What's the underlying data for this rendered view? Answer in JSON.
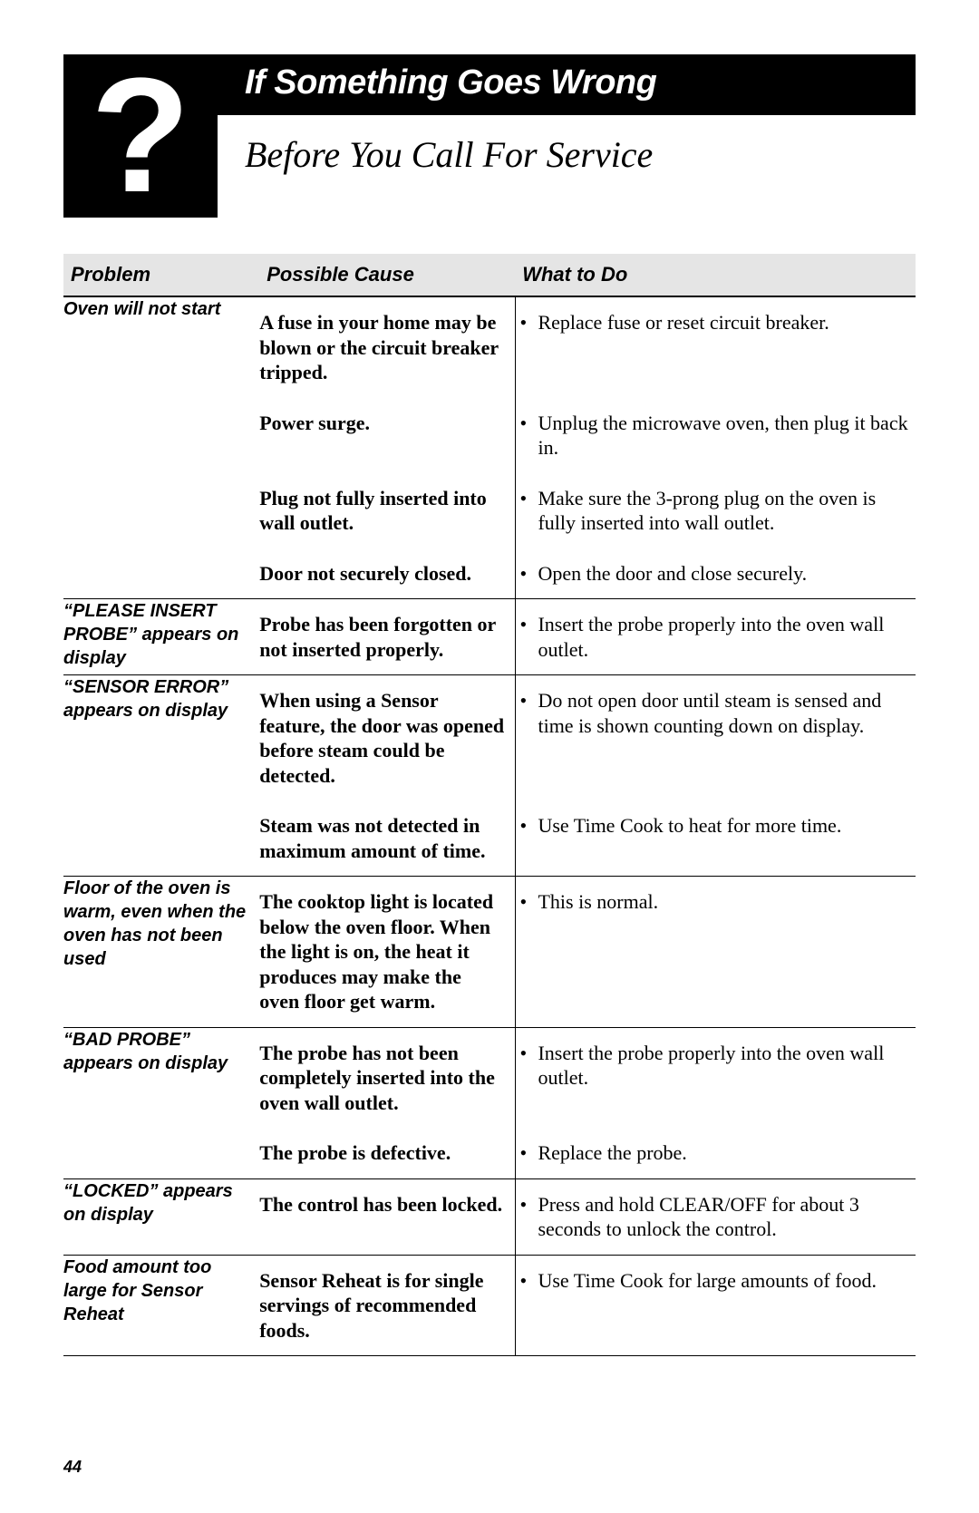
{
  "header": {
    "title": "If Something Goes Wrong",
    "subtitle": "Before You Call For Service",
    "icon_char": "?"
  },
  "columns": {
    "problem": "Problem",
    "cause": "Possible Cause",
    "action": "What to Do"
  },
  "rows": [
    {
      "problem": "Oven will not start",
      "items": [
        {
          "cause": "A fuse in your home may be blown or the circuit breaker tripped.",
          "action": "Replace fuse or reset circuit breaker."
        },
        {
          "cause": "Power surge.",
          "action": "Unplug the microwave oven, then plug it back in."
        },
        {
          "cause": "Plug not fully inserted into wall outlet.",
          "action": "Make sure the 3-prong plug on the oven is fully inserted into wall outlet."
        },
        {
          "cause": "Door not securely closed.",
          "action": "Open the door and close securely."
        }
      ]
    },
    {
      "problem": "“PLEASE INSERT PROBE” appears on display",
      "items": [
        {
          "cause": "Probe has been forgotten or not inserted properly.",
          "action": "Insert the probe properly into the oven wall outlet."
        }
      ]
    },
    {
      "problem": "“SENSOR ERROR” appears on display",
      "items": [
        {
          "cause": "When using a Sensor feature, the door was opened before steam could be detected.",
          "action": "Do not open door until steam is sensed and time is shown counting down on display."
        },
        {
          "cause": "Steam was not detected in maximum amount of time.",
          "action": "Use Time Cook to heat for more time."
        }
      ]
    },
    {
      "problem": "Floor of the oven is warm, even when the oven has not been used",
      "items": [
        {
          "cause": "The cooktop light is located below the oven floor. When the light is on, the heat it produces may make the oven floor get warm.",
          "action": "This is normal."
        }
      ]
    },
    {
      "problem": "“BAD PROBE” appears on display",
      "items": [
        {
          "cause": "The probe has not been completely inserted into the oven wall outlet.",
          "action": "Insert the probe properly into the oven wall outlet."
        },
        {
          "cause": "The probe is defective.",
          "action": "Replace the probe."
        }
      ]
    },
    {
      "problem": "“LOCKED” appears on display",
      "items": [
        {
          "cause": "The control has been locked.",
          "action": "Press and hold CLEAR/OFF for about 3 seconds to unlock the control."
        }
      ]
    },
    {
      "problem": "Food amount too large for Sensor Reheat",
      "items": [
        {
          "cause": "Sensor Reheat is for single servings of recommended foods.",
          "action": "Use Time Cook for large amounts of food."
        }
      ]
    }
  ],
  "page_number": "44",
  "colors": {
    "header_bg": "#e5e5e5",
    "black": "#000000",
    "white": "#ffffff"
  }
}
